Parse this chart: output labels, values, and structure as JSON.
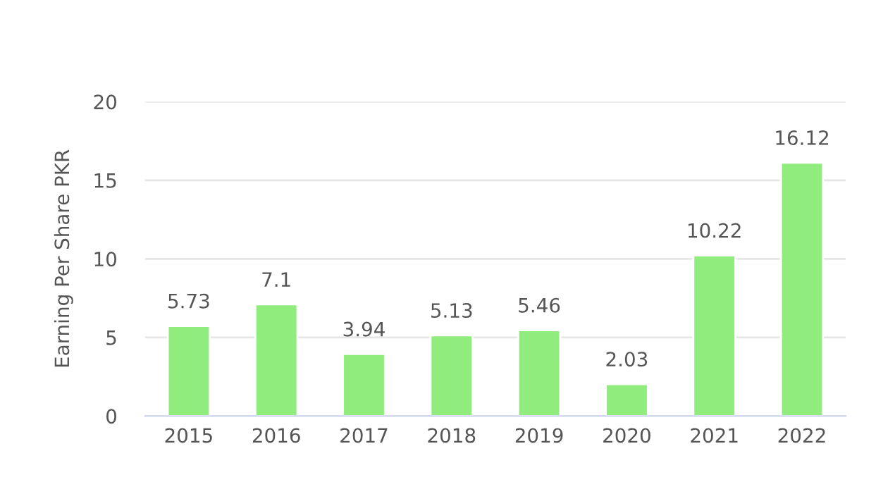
{
  "chart_data": {
    "type": "bar",
    "ylabel": "Earning Per Share PKR",
    "categories": [
      "2015",
      "2016",
      "2017",
      "2018",
      "2019",
      "2020",
      "2021",
      "2022"
    ],
    "values": [
      5.73,
      7.1,
      3.94,
      5.13,
      5.46,
      2.03,
      10.22,
      16.12
    ],
    "color": "#90ed7d",
    "ylim": [
      0,
      20
    ],
    "yticks": [
      0,
      5,
      10,
      15,
      20
    ],
    "grid": "y",
    "data_labels": true,
    "legend": false
  }
}
